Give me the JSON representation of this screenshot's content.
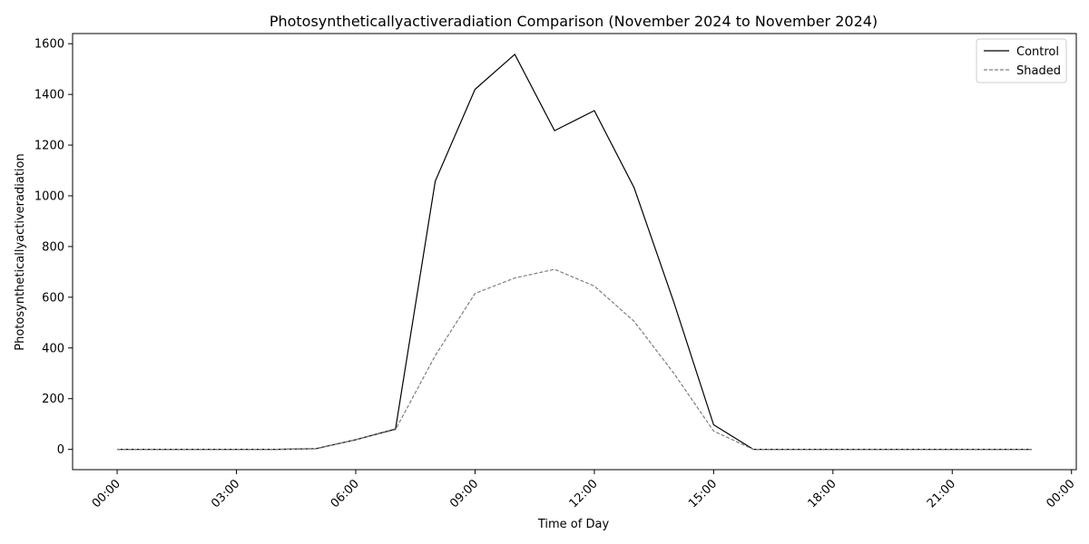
{
  "chart_data": {
    "type": "line",
    "title": "Photosyntheticallyactiveradiation Comparison (November 2024 to November 2024)",
    "xlabel": "Time of Day",
    "ylabel": "Photosyntheticallyactiveradiation",
    "x": [
      "00:00",
      "01:00",
      "02:00",
      "03:00",
      "04:00",
      "05:00",
      "06:00",
      "07:00",
      "08:00",
      "09:00",
      "10:00",
      "11:00",
      "12:00",
      "13:00",
      "14:00",
      "15:00",
      "16:00",
      "17:00",
      "18:00",
      "19:00",
      "20:00",
      "21:00",
      "22:00",
      "23:00"
    ],
    "xticks": [
      "00:00",
      "03:00",
      "06:00",
      "09:00",
      "12:00",
      "15:00",
      "18:00",
      "21:00",
      "00:00"
    ],
    "xlim_hours": [
      -1.12,
      24.12
    ],
    "ylim": [
      -80,
      1640
    ],
    "yticks": [
      0,
      200,
      400,
      600,
      800,
      1000,
      1200,
      1400,
      1600
    ],
    "legend_position": "top-right",
    "series": [
      {
        "name": "Control",
        "color": "#000000",
        "style": "solid",
        "values": [
          0,
          0,
          0,
          0,
          0,
          3,
          38,
          80,
          1058,
          1420,
          1558,
          1257,
          1336,
          1032,
          580,
          97,
          0,
          0,
          0,
          0,
          0,
          0,
          0,
          0
        ]
      },
      {
        "name": "Shaded",
        "color": "#7f7f7f",
        "style": "dashed",
        "values": [
          0,
          0,
          0,
          0,
          0,
          2,
          38,
          78,
          370,
          615,
          676,
          710,
          644,
          505,
          300,
          72,
          0,
          0,
          0,
          0,
          0,
          0,
          0,
          0
        ]
      }
    ]
  }
}
